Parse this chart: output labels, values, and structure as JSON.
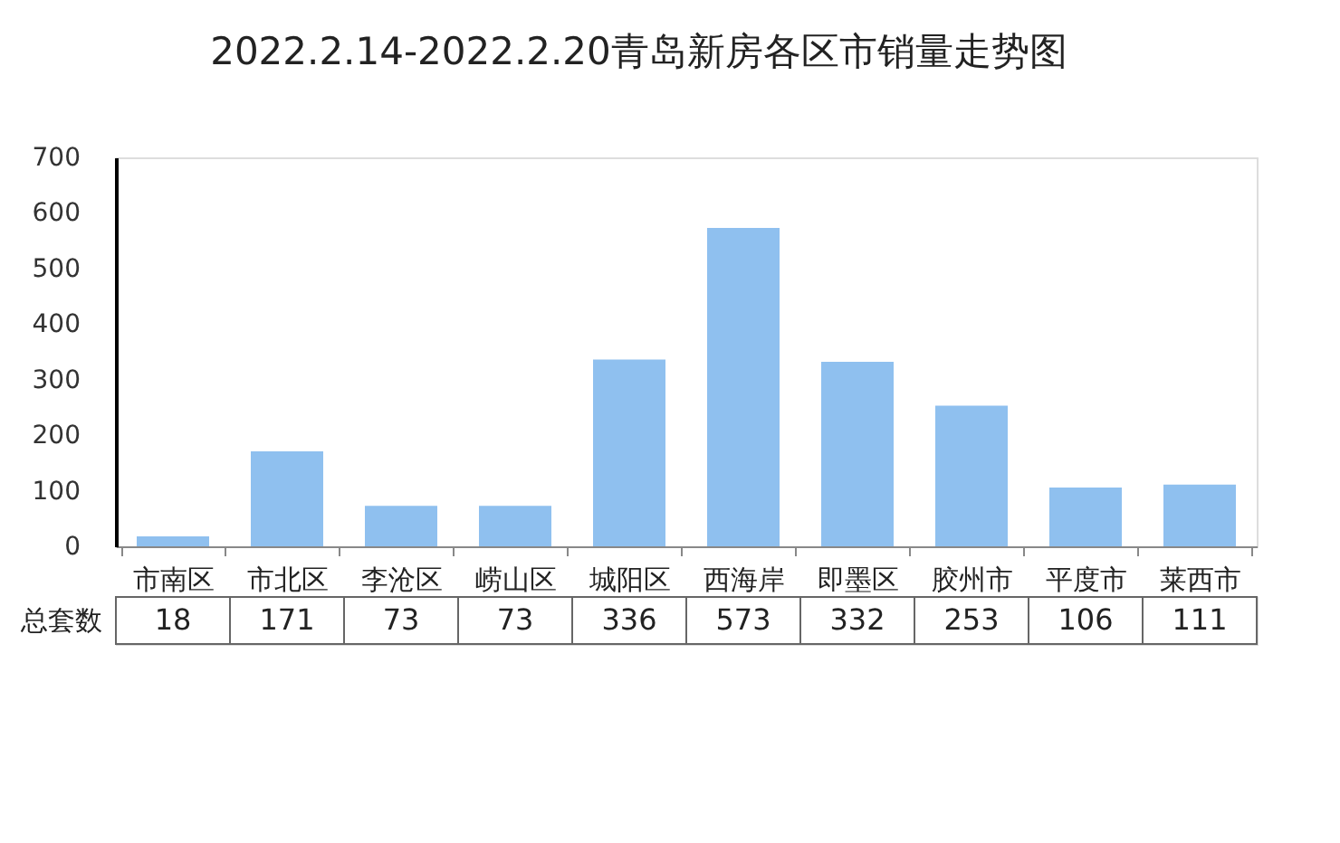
{
  "chart_data": {
    "type": "bar",
    "title": "2022.2.14-2022.2.20青岛新房各区市销量走势图",
    "categories": [
      "市南区",
      "市北区",
      "李沧区",
      "崂山区",
      "城阳区",
      "西海岸",
      "即墨区",
      "胶州市",
      "平度市",
      "莱西市"
    ],
    "series": [
      {
        "name": "总套数",
        "color": "#8fc0ef",
        "values": [
          18,
          171,
          73,
          73,
          336,
          573,
          332,
          253,
          106,
          111
        ]
      }
    ],
    "ylim": [
      0,
      700
    ],
    "yticks": [
      0,
      100,
      200,
      300,
      400,
      500,
      600,
      700
    ],
    "grid": false,
    "data_labels": true
  }
}
